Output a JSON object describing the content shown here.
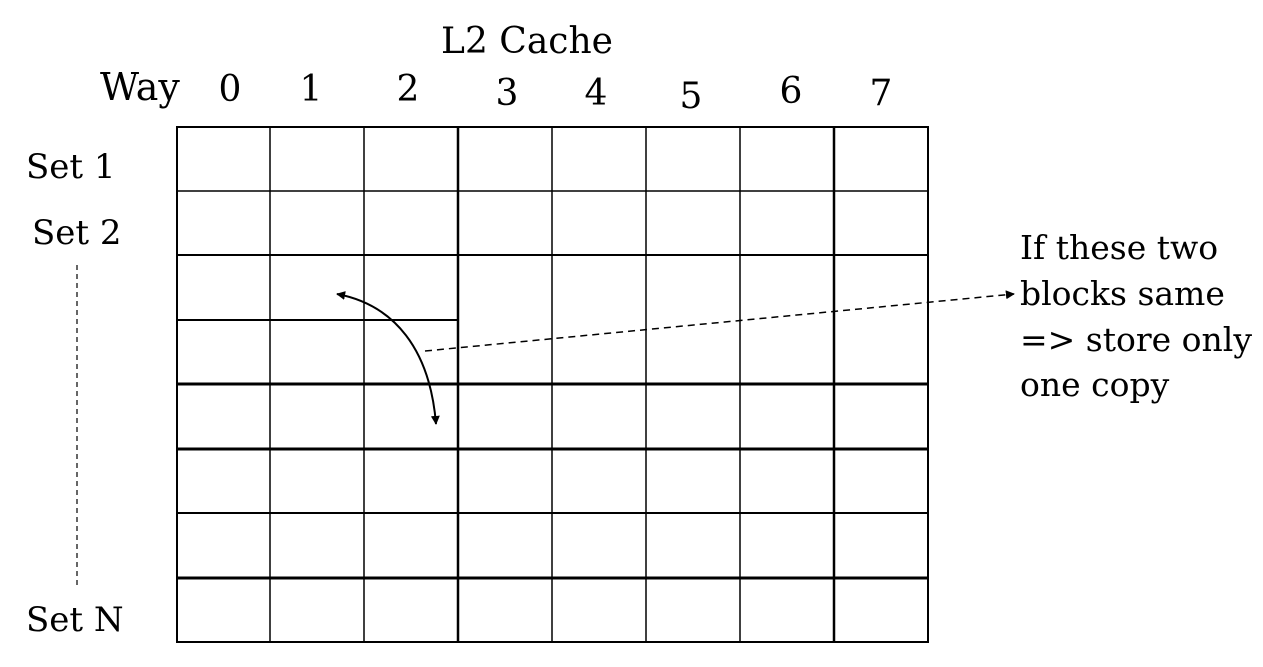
{
  "title": "L2 Cache",
  "way_label": "Way",
  "ways": [
    "0",
    "1",
    "2",
    "3",
    "4",
    "5",
    "6",
    "7"
  ],
  "set_labels": {
    "first": "Set 1",
    "second": "Set 2",
    "last": "Set N"
  },
  "annotation": {
    "lines": [
      "If these two",
      "blocks same",
      "=> store only",
      "one copy"
    ]
  },
  "grid": {
    "columns": 8,
    "rows": 8
  },
  "colors": {
    "line": "#000000",
    "background": "#ffffff"
  }
}
